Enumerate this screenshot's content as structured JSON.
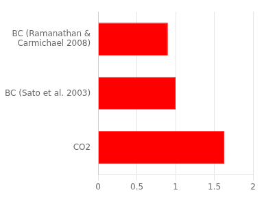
{
  "chart_data": {
    "type": "bar",
    "orientation": "horizontal",
    "categories": [
      "CO2",
      "BC (Sato et al. 2003)",
      "BC (Ramanathan &\nCarmichael 2008)"
    ],
    "values": [
      1.63,
      1.0,
      0.9
    ],
    "color": "#ff0000",
    "xlim": [
      0,
      2
    ],
    "xticks": [
      0,
      0.5,
      1,
      1.5,
      2
    ],
    "grid": true
  }
}
